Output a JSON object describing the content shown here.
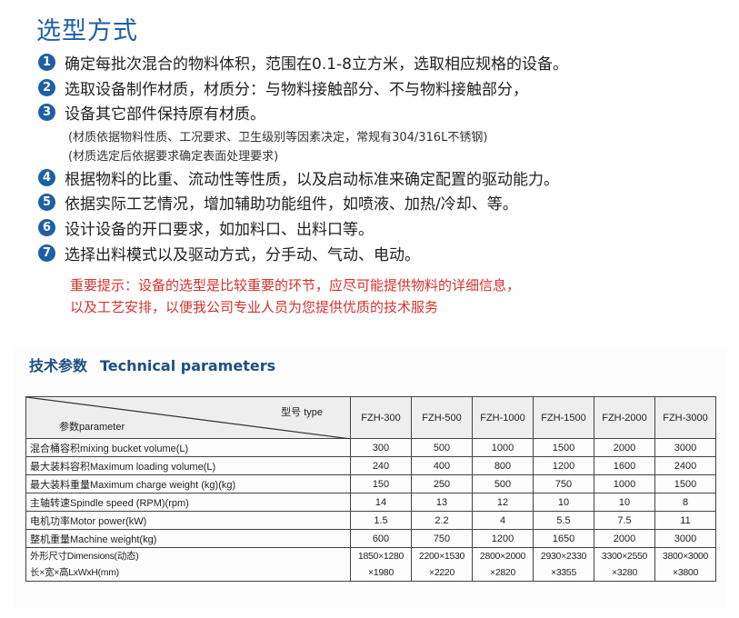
{
  "title": "选型方式",
  "items": [
    {
      "num": "1",
      "text": "确定每批次混合的物料体积，范围在0.1-8立方米，选取相应规格的设备。"
    },
    {
      "num": "2",
      "text": "选取设备制作材质，材质分：与物料接触部分、不与物料接触部分，"
    },
    {
      "num": "3",
      "text": "设备其它部件保持原有材质。"
    },
    {
      "num": "4",
      "text": "根据物料的比重、流动性等性质，以及启动标准来确定配置的驱动能力。"
    },
    {
      "num": "5",
      "text": "依据实际工艺情况，增加辅助功能组件，如喷液、加热/冷却、等。"
    },
    {
      "num": "6",
      "text": "设计设备的开口要求，如加料口、出料口等。"
    },
    {
      "num": "7",
      "text": "选择出料模式以及驱动方式，分手动、气动、电动。"
    }
  ],
  "notes": [
    "(材质依据物料性质、工况要求、卫生级别等因素决定，常规有304/316L不锈钢)",
    "(材质选定后依据要求确定表面处理要求)"
  ],
  "warning": [
    "重要提示：设备的选型是比较重要的环节，应尽可能提供物料的详细信息，",
    "以及工艺安排，以便我公司专业人员为您提供优质的技术服务"
  ],
  "section": {
    "cn": "技术参数",
    "en": "Technical parameters"
  },
  "table": {
    "corner_type": "型号 type",
    "corner_param": "参数parameter",
    "models": [
      "FZH-300",
      "FZH-500",
      "FZH-1000",
      "FZH-1500",
      "FZH-2000",
      "FZH-3000"
    ],
    "rows": [
      {
        "label": "混合桶容积mixing bucket volume(L)",
        "values": [
          "300",
          "500",
          "1000",
          "1500",
          "2000",
          "3000"
        ]
      },
      {
        "label": "最大装料容积Maximum loading volume(L)",
        "values": [
          "240",
          "400",
          "800",
          "1200",
          "1600",
          "2400"
        ]
      },
      {
        "label": "最大装料重量Maximum charge weight (kg)(kg)",
        "values": [
          "150",
          "250",
          "500",
          "750",
          "1000",
          "1500"
        ]
      },
      {
        "label": "主轴转速Spindle speed (RPM)(rpm)",
        "values": [
          "14",
          "13",
          "12",
          "10",
          "10",
          "8"
        ]
      },
      {
        "label": "电机功率Motor power(kW)",
        "values": [
          "1.5",
          "2.2",
          "4",
          "5.5",
          "7.5",
          "11"
        ]
      },
      {
        "label": "整机重量Machine weight(kg)",
        "values": [
          "600",
          "750",
          "1200",
          "1650",
          "2000",
          "3000"
        ]
      }
    ],
    "dim": {
      "label1": "外形尺寸Dimensions(动态)",
      "label2": "长×宽×高LxWxH(mm)",
      "line1": [
        "1850×1280",
        "2200×1530",
        "2800×2000",
        "2930×2330",
        "3300×2550",
        "3800×3000"
      ],
      "line2": [
        "×1980",
        "×2220",
        "×2820",
        "×3355",
        "×3280",
        "×3800"
      ]
    }
  }
}
